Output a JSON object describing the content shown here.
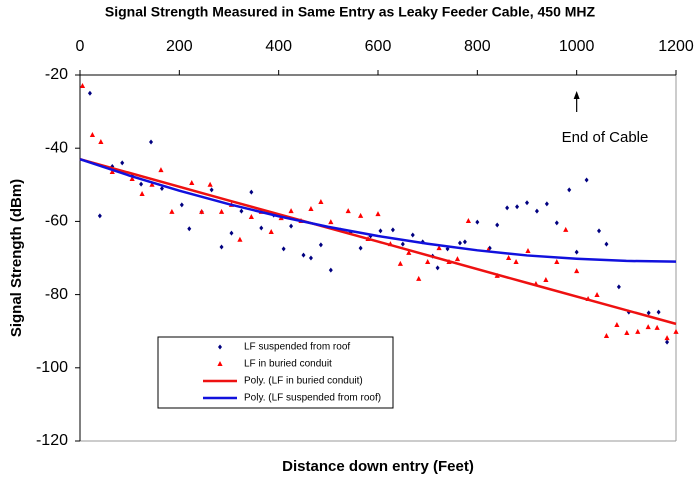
{
  "chart_data": {
    "type": "scatter",
    "title": "Signal Strength Measured in Same Entry as Leaky Feeder Cable, 450 MHZ",
    "x_label": "Distance down entry (Feet)",
    "y_label": "Signal Strength (dBm)",
    "xlim": [
      0,
      1200
    ],
    "xticks": [
      0,
      200,
      400,
      600,
      800,
      1000,
      1200
    ],
    "ylim": [
      -120,
      -20
    ],
    "yticks": [
      -20,
      -40,
      -60,
      -80,
      -100,
      -120
    ],
    "annotation": {
      "text": "End of Cable",
      "x": 1000
    },
    "series": [
      {
        "name": "LF suspended from roof",
        "mode": "markers",
        "marker": "diamond",
        "color": "#000080",
        "x": [
          20,
          40,
          65,
          85,
          105,
          123,
          143,
          165,
          205,
          220,
          245,
          265,
          285,
          305,
          325,
          345,
          365,
          390,
          410,
          425,
          450,
          465,
          485,
          505,
          525,
          545,
          565,
          585,
          605,
          630,
          650,
          670,
          690,
          710,
          720,
          740,
          765,
          775,
          800,
          825,
          840,
          860,
          880,
          900,
          920,
          940,
          960,
          985,
          1000,
          1020,
          1045,
          1060,
          1085,
          1105,
          1145,
          1165,
          1182
        ],
        "values": [
          -25,
          -58.5,
          -45,
          -44,
          -47.6,
          -49.8,
          -38.3,
          -51,
          -55.5,
          -62,
          -57.4,
          -51.4,
          -67,
          -63.2,
          -57.2,
          -52,
          -61.8,
          -58.3,
          -67.5,
          -61.3,
          -69.2,
          -70,
          -66.4,
          -73.3,
          -62.4,
          -63,
          -67.3,
          -64,
          -62.6,
          -62.3,
          -66.2,
          -63.7,
          -65.6,
          -69.5,
          -72.7,
          -67.5,
          -65.9,
          -65.6,
          -60.2,
          -67.3,
          -61,
          -56.3,
          -56,
          -54.9,
          -57.2,
          -55.2,
          -60.4,
          -51.4,
          -68.4,
          -48.7,
          -62.6,
          -66.2,
          -77.9,
          -84.8,
          -85,
          -84.8,
          -93
        ]
      },
      {
        "name": "LF in buried conduit",
        "mode": "markers",
        "marker": "triangle",
        "color": "#ff0000",
        "x": [
          5,
          25,
          42,
          65,
          105,
          125,
          145,
          163,
          185,
          225,
          245,
          262,
          285,
          305,
          322,
          345,
          365,
          385,
          405,
          425,
          445,
          465,
          485,
          505,
          540,
          565,
          580,
          600,
          625,
          645,
          662,
          682,
          700,
          723,
          743,
          760,
          782,
          822,
          840,
          863,
          878,
          902,
          918,
          938,
          960,
          978,
          1000,
          1023,
          1041,
          1060,
          1081,
          1101,
          1123,
          1144,
          1162,
          1182,
          1200
        ],
        "values": [
          -23,
          -36.4,
          -38.3,
          -46.5,
          -48.4,
          -52.5,
          -50,
          -46,
          -57.4,
          -49.5,
          -57.4,
          -50,
          -57.4,
          -55.5,
          -65,
          -58.8,
          -57.4,
          -62.9,
          -59.1,
          -57.2,
          -59.9,
          -56.6,
          -54.7,
          -60.2,
          -57.2,
          -58.5,
          -64.8,
          -58,
          -66.2,
          -71.6,
          -68.6,
          -75.7,
          -71.1,
          -67.3,
          -71.1,
          -70.3,
          -59.9,
          -67.8,
          -74.9,
          -70,
          -71.1,
          -68.1,
          -77.1,
          -76,
          -71.1,
          -62.3,
          -73.6,
          -81.2,
          -80.1,
          -91.3,
          -88.3,
          -90.5,
          -90.2,
          -88.9,
          -89.1,
          -91.9,
          -90.2
        ]
      },
      {
        "name": "Poly. (LF in buried conduit)",
        "mode": "line",
        "color": "#ee1111",
        "x": [
          0,
          300,
          600,
          900,
          1200
        ],
        "values": [
          -43,
          -54.3,
          -65.5,
          -76.8,
          -88
        ]
      },
      {
        "name": "Poly. (LF suspended from roof)",
        "mode": "line",
        "color": "#1111dd",
        "x": [
          0,
          100,
          200,
          300,
          400,
          500,
          600,
          700,
          800,
          900,
          1000,
          1100,
          1200
        ],
        "values": [
          -43,
          -47.5,
          -51.6,
          -55.3,
          -58.6,
          -61.5,
          -64,
          -66.1,
          -67.9,
          -69.3,
          -70.2,
          -70.8,
          -71
        ]
      }
    ]
  }
}
